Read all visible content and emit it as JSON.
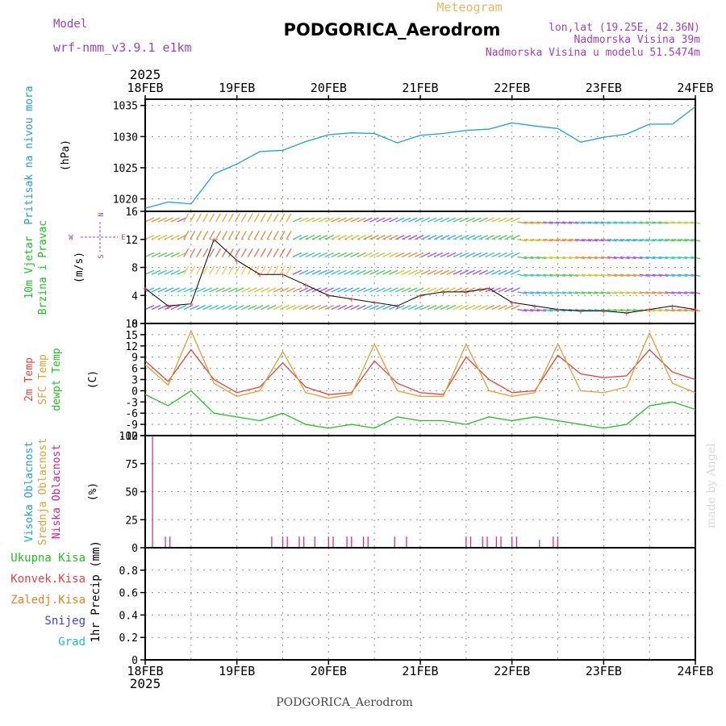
{
  "header": {
    "model_label": "Model",
    "model_name": "wrf-nmm_v3.9.1 e1km",
    "meteogram_label": "Meteogram",
    "station_title": "PODGORICA_Aerodrom",
    "lonlat": "lon,lat (19.25E, 42.36N)",
    "elevation": "Nadmorska Visina 39m",
    "model_elevation": "Nadmorska Visina u modelu 51.5474m"
  },
  "footer": {
    "station": "PODGORICA_Aerodrom"
  },
  "watermark": "made by Angel",
  "time_axis": {
    "year": "2025",
    "days": [
      "18FEB",
      "19FEB",
      "20FEB",
      "21FEB",
      "22FEB",
      "23FEB",
      "24FEB"
    ]
  },
  "colors": {
    "pressure": "#1aa0e0",
    "temp2m": "#e84040",
    "sfc": "#e0a030",
    "dewpt": "#20c020",
    "low_cloud": "#d0208c",
    "grid": "#909090"
  },
  "wind_compass": {
    "n": "N",
    "w": "W",
    "e": "E",
    "s": "S"
  },
  "chart_data": [
    {
      "type": "line",
      "panel": "pressure",
      "ylabel_lines": [
        "Pritisak na nivou mora"
      ],
      "unit": "(hPa)",
      "x": [
        0,
        0.25,
        0.5,
        0.75,
        1,
        1.25,
        1.5,
        1.75,
        2,
        2.25,
        2.5,
        2.75,
        3,
        3.25,
        3.5,
        3.75,
        4,
        4.25,
        4.5,
        4.75,
        5,
        5.25,
        5.5,
        5.75,
        6
      ],
      "series": [
        {
          "values": [
            1018.5,
            1019.5,
            1019.2,
            1024,
            1025.6,
            1027.6,
            1027.8,
            1029.2,
            1030.3,
            1030.6,
            1030.5,
            1029,
            1030.2,
            1030.5,
            1031,
            1031.2,
            1032.2,
            1031.7,
            1031.3,
            1029.1,
            1029.9,
            1030.4,
            1032,
            1032,
            1034.8
          ]
        }
      ],
      "ylim": [
        1018,
        1036
      ],
      "yticks": [
        1020,
        1025,
        1030,
        1035
      ]
    },
    {
      "type": "line",
      "panel": "wind",
      "ylabel_lines": [
        "10m Vjetar",
        "Brzina i Pravac"
      ],
      "unit": "(m/s)",
      "x": [
        0,
        0.25,
        0.5,
        0.75,
        1,
        1.25,
        1.5,
        1.75,
        2,
        2.25,
        2.5,
        2.75,
        3,
        3.25,
        3.5,
        3.75,
        4,
        4.25,
        4.5,
        4.75,
        5,
        5.25,
        5.5,
        5.75,
        6
      ],
      "series": [
        {
          "values": [
            5,
            2.5,
            2.8,
            12,
            9,
            7,
            7,
            5.5,
            4,
            3.5,
            3,
            2.5,
            4,
            4.5,
            4.5,
            5,
            3,
            2.5,
            2,
            1.8,
            1.8,
            1.5,
            2,
            2.5,
            2
          ]
        }
      ],
      "ylim": [
        0,
        16
      ],
      "yticks": [
        0,
        4,
        8,
        12,
        16
      ]
    },
    {
      "type": "line",
      "panel": "temperature",
      "ylabel_lines": [
        "2m Temp",
        "SFC Temp",
        "dewpt Temp"
      ],
      "unit": "(C)",
      "x": [
        0,
        0.25,
        0.5,
        0.75,
        1,
        1.25,
        1.5,
        1.75,
        2,
        2.25,
        2.5,
        2.75,
        3,
        3.25,
        3.5,
        3.75,
        4,
        4.25,
        4.5,
        4.75,
        5,
        5.25,
        5.5,
        5.75,
        6
      ],
      "series": [
        {
          "name": "2m Temp",
          "values": [
            8,
            2.5,
            11,
            3,
            -0.5,
            1,
            7.5,
            1,
            -1,
            -0.5,
            8,
            2,
            -0.5,
            -1,
            9,
            3,
            -0.5,
            0,
            9.5,
            4.5,
            3.5,
            4,
            11,
            5,
            3
          ]
        },
        {
          "name": "SFC Temp",
          "values": [
            7,
            1.5,
            16,
            2,
            -1.5,
            0,
            10.5,
            -0.5,
            -2,
            -1,
            12.5,
            0,
            -1.5,
            -1.5,
            12.5,
            0,
            -1.5,
            -0.5,
            12.5,
            0,
            -0.5,
            1,
            15.5,
            2,
            -0.5
          ]
        },
        {
          "name": "dewpt Temp",
          "values": [
            -1,
            -4,
            0,
            -6,
            -7,
            -8,
            -6,
            -9,
            -10,
            -9,
            -10,
            -7,
            -8,
            -8,
            -9,
            -7,
            -8,
            -7,
            -8,
            -9,
            -10,
            -9,
            -4,
            -3,
            -5
          ]
        }
      ],
      "ylim": [
        -12,
        18
      ],
      "yticks": [
        -12,
        -9,
        -6,
        -3,
        0,
        3,
        6,
        9,
        12,
        15,
        18
      ]
    },
    {
      "type": "bar",
      "panel": "cloud",
      "ylabel_lines": [
        "Visoka Oblacnost",
        "Srednja Oblacnost",
        "Niska Oblacnost"
      ],
      "unit": "(%)",
      "x": [
        0.08,
        0.22,
        0.27,
        1.38,
        1.5,
        1.55,
        1.68,
        1.73,
        1.85,
        2,
        2.05,
        2.2,
        2.25,
        2.38,
        2.43,
        2.72,
        2.85,
        3.5,
        3.55,
        3.68,
        3.73,
        3.83,
        3.88,
        4,
        4.05,
        4.3,
        4.45,
        4.5
      ],
      "values": [
        100,
        10,
        10,
        10,
        10,
        10,
        10,
        10,
        10,
        10,
        10,
        10,
        10,
        10,
        10,
        10,
        10,
        10,
        10,
        10,
        10,
        10,
        10,
        10,
        10,
        7,
        10,
        10
      ],
      "ylim": [
        0,
        100
      ],
      "yticks": [
        0,
        25,
        50,
        75,
        100
      ]
    },
    {
      "type": "bar",
      "panel": "precip",
      "ylabel_lines": [
        "Ukupna Kisa",
        "Konvek.Kisa",
        "Zaledj.Kisa",
        "Snijeg",
        "Grad"
      ],
      "unit": "1hr Precip (mm)",
      "x": [],
      "values": [],
      "ylim": [
        0,
        1
      ],
      "yticks": [
        0,
        0.2,
        0.4,
        0.6,
        0.8
      ]
    }
  ]
}
